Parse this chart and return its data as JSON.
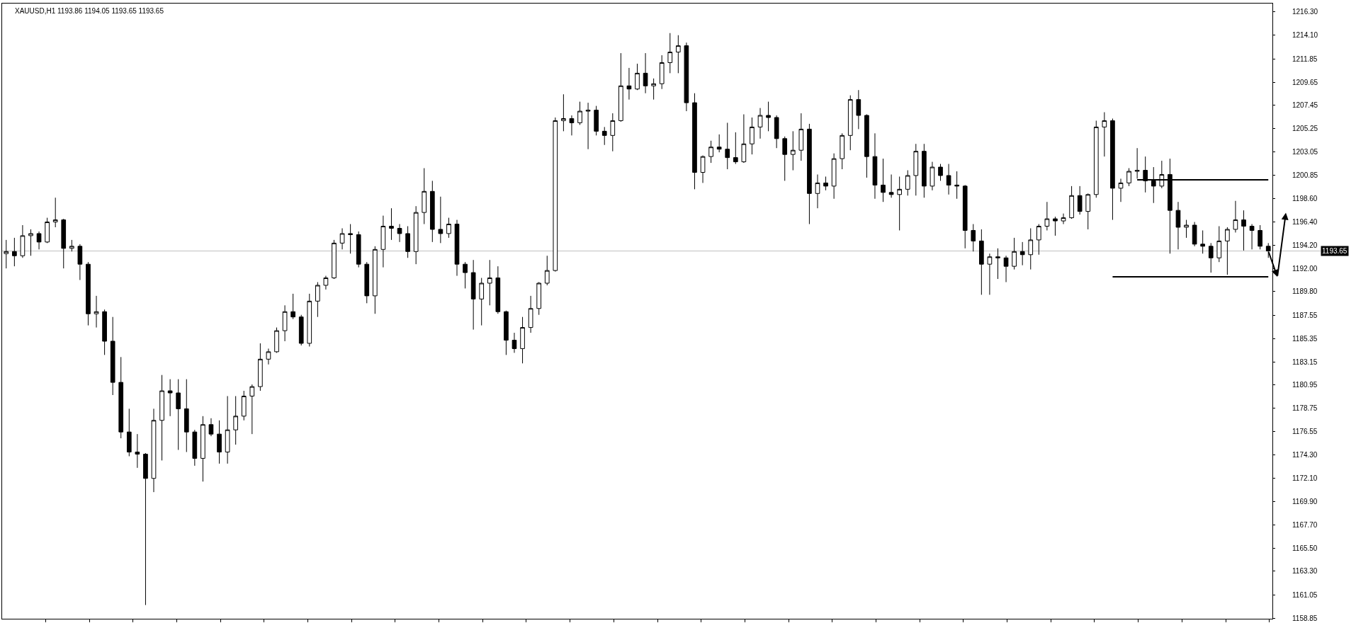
{
  "chart_data": {
    "type": "candlestick",
    "title": "XAUUSD,H1 1193.86 1194.05 1193.65 1193.65",
    "color": "#000000",
    "tick_labels": "y",
    "ylim": [
      1158.8,
      1217.1
    ],
    "yticks": [
      {
        "value": 1216.3,
        "label": "1216.30"
      },
      {
        "value": 1214.1,
        "label": "1214.10"
      },
      1211.85,
      1209.65,
      1207.45,
      1205.25,
      1203.05,
      1200.85,
      {
        "value": 1198.6,
        "label": "1198.60"
      },
      {
        "value": 1196.4,
        "label": "1196.40"
      },
      {
        "value": 1194.2,
        "label": "1194.20"
      },
      {
        "value": 1192.0,
        "label": "1192.00"
      },
      {
        "value": 1189.8,
        "label": "1189.80"
      },
      1187.55,
      1185.35,
      1183.15,
      1180.95,
      1178.75,
      1176.55,
      {
        "value": 1174.3,
        "label": "1174.30"
      },
      {
        "value": 1172.1,
        "label": "1172.10"
      },
      {
        "value": 1169.9,
        "label": "1169.90"
      },
      {
        "value": 1167.7,
        "label": "1167.70"
      },
      {
        "value": 1165.5,
        "label": "1165.50"
      },
      {
        "value": 1163.3,
        "label": "1163.30"
      },
      1161.05,
      1158.85
    ],
    "ref_lines": [
      {
        "axis": "y",
        "value": 1193.65,
        "label": "1193.65",
        "color": "#c0c0c0"
      }
    ],
    "categories": [
      null,
      null,
      null,
      null,
      null,
      null,
      null,
      null,
      null,
      null,
      null,
      null,
      null,
      null,
      null,
      null,
      null,
      null,
      null,
      null,
      null,
      null,
      null,
      null,
      null,
      null,
      null,
      null,
      null,
      null,
      null,
      null,
      null,
      null,
      null,
      null,
      null,
      null,
      null,
      null,
      null,
      null,
      null,
      null,
      null,
      null,
      null,
      null,
      null,
      null,
      null,
      null,
      null,
      null,
      null,
      null,
      null,
      null,
      null,
      null,
      null,
      null,
      null,
      null,
      null,
      null,
      null,
      null,
      null,
      null,
      null,
      null,
      null,
      null,
      null,
      null,
      null,
      null,
      null,
      null,
      null,
      null,
      null,
      null,
      null,
      null,
      null,
      null,
      null,
      null,
      null,
      null,
      null,
      null,
      null,
      null,
      null,
      null,
      null,
      null,
      null,
      null,
      null,
      null,
      null,
      null,
      null,
      null,
      null,
      null,
      null,
      null,
      null,
      null,
      null,
      null,
      null,
      null,
      null,
      null,
      null,
      null,
      null,
      null,
      null,
      null,
      null,
      null,
      null,
      null,
      null,
      null,
      null,
      null,
      null,
      null,
      null,
      null,
      null,
      null,
      null,
      null,
      null,
      null,
      null,
      null,
      null,
      null,
      null,
      null,
      null,
      null,
      null,
      null,
      null
    ],
    "ohlc": [
      [
        1193.4,
        1194.7,
        1192.0,
        1193.6
      ],
      [
        1193.6,
        1194.9,
        1192.2,
        1193.2
      ],
      [
        1193.2,
        1196.1,
        1193.0,
        1195.1
      ],
      [
        1195.1,
        1195.7,
        1193.2,
        1195.3
      ],
      [
        1195.3,
        1195.5,
        1193.8,
        1194.5
      ],
      [
        1194.5,
        1196.8,
        1194.4,
        1196.4
      ],
      [
        1196.4,
        1198.7,
        1195.9,
        1196.6
      ],
      [
        1196.6,
        1196.7,
        1192.0,
        1193.9
      ],
      [
        1193.9,
        1194.7,
        1193.6,
        1194.1
      ],
      [
        1194.1,
        1194.3,
        1190.9,
        1192.4
      ],
      [
        1192.4,
        1192.6,
        1186.6,
        1187.7
      ],
      [
        1187.7,
        1189.4,
        1186.4,
        1187.9
      ],
      [
        1187.9,
        1188.1,
        1183.8,
        1185.1
      ],
      [
        1185.1,
        1187.4,
        1180.0,
        1181.2
      ],
      [
        1181.2,
        1183.6,
        1175.9,
        1176.5
      ],
      [
        1176.5,
        1178.7,
        1174.2,
        1174.6
      ],
      [
        1174.6,
        1176.3,
        1173.1,
        1174.4
      ],
      [
        1174.4,
        1174.5,
        1160.1,
        1172.1
      ],
      [
        1172.1,
        1178.7,
        1170.8,
        1177.6
      ],
      [
        1177.6,
        1181.9,
        1173.8,
        1180.4
      ],
      [
        1180.4,
        1181.5,
        1178.0,
        1180.2
      ],
      [
        1180.2,
        1181.5,
        1174.8,
        1178.7
      ],
      [
        1178.7,
        1181.5,
        1174.6,
        1176.5
      ],
      [
        1176.5,
        1176.7,
        1173.3,
        1174.0
      ],
      [
        1174.0,
        1178.0,
        1171.8,
        1177.2
      ],
      [
        1177.2,
        1177.8,
        1176.1,
        1176.3
      ],
      [
        1176.3,
        1177.6,
        1173.5,
        1174.6
      ],
      [
        1174.6,
        1179.9,
        1173.5,
        1176.7
      ],
      [
        1176.7,
        1179.9,
        1175.3,
        1178.0
      ],
      [
        1178.0,
        1180.4,
        1177.6,
        1179.9
      ],
      [
        1179.9,
        1181.0,
        1176.3,
        1180.8
      ],
      [
        1180.8,
        1184.9,
        1180.4,
        1183.4
      ],
      [
        1183.4,
        1184.4,
        1182.9,
        1184.1
      ],
      [
        1184.1,
        1186.4,
        1184.0,
        1186.1
      ],
      [
        1186.1,
        1188.5,
        1185.1,
        1187.9
      ],
      [
        1187.9,
        1189.6,
        1187.2,
        1187.4
      ],
      [
        1187.4,
        1187.6,
        1184.7,
        1184.9
      ],
      [
        1184.9,
        1189.6,
        1184.6,
        1188.9
      ],
      [
        1188.9,
        1190.7,
        1187.4,
        1190.4
      ],
      [
        1190.4,
        1191.3,
        1190.0,
        1191.1
      ],
      [
        1191.1,
        1194.7,
        1191.0,
        1194.4
      ],
      [
        1194.4,
        1195.8,
        1193.8,
        1195.3
      ],
      [
        1195.3,
        1196.2,
        1193.4,
        1195.2
      ],
      [
        1195.2,
        1195.5,
        1192.1,
        1192.4
      ],
      [
        1192.4,
        1192.6,
        1188.7,
        1189.4
      ],
      [
        1189.4,
        1194.1,
        1187.7,
        1193.8
      ],
      [
        1193.8,
        1197.0,
        1192.1,
        1196.0
      ],
      [
        1196.0,
        1197.7,
        1194.7,
        1195.8
      ],
      [
        1195.8,
        1196.2,
        1194.5,
        1195.3
      ],
      [
        1195.3,
        1196.0,
        1193.0,
        1193.6
      ],
      [
        1193.6,
        1197.9,
        1192.4,
        1197.3
      ],
      [
        1197.3,
        1201.5,
        1196.2,
        1199.3
      ],
      [
        1199.3,
        1200.3,
        1194.5,
        1195.7
      ],
      [
        1195.7,
        1198.8,
        1194.4,
        1195.3
      ],
      [
        1195.3,
        1196.8,
        1194.9,
        1196.2
      ],
      [
        1196.2,
        1196.6,
        1191.3,
        1192.4
      ],
      [
        1192.4,
        1192.6,
        1190.1,
        1191.6
      ],
      [
        1191.6,
        1192.8,
        1186.2,
        1189.1
      ],
      [
        1189.1,
        1191.1,
        1186.6,
        1190.6
      ],
      [
        1190.6,
        1192.8,
        1188.5,
        1191.1
      ],
      [
        1191.1,
        1192.2,
        1187.7,
        1187.9
      ],
      [
        1187.9,
        1188.0,
        1183.8,
        1185.2
      ],
      [
        1185.2,
        1185.9,
        1184.0,
        1184.4
      ],
      [
        1184.4,
        1187.4,
        1183.0,
        1186.4
      ],
      [
        1186.4,
        1189.4,
        1185.9,
        1188.2
      ],
      [
        1188.2,
        1190.7,
        1187.6,
        1190.6
      ],
      [
        1190.6,
        1193.2,
        1190.4,
        1191.8
      ],
      [
        1191.8,
        1206.3,
        1191.7,
        1206.0
      ],
      [
        1206.0,
        1208.5,
        1205.0,
        1206.2
      ],
      [
        1206.2,
        1206.5,
        1204.6,
        1205.8
      ],
      [
        1205.8,
        1207.8,
        1205.6,
        1206.9
      ],
      [
        1206.9,
        1207.7,
        1203.3,
        1207.0
      ],
      [
        1207.0,
        1207.4,
        1204.6,
        1205.0
      ],
      [
        1205.0,
        1205.4,
        1203.7,
        1204.6
      ],
      [
        1204.6,
        1206.7,
        1203.1,
        1206.0
      ],
      [
        1206.0,
        1212.4,
        1205.9,
        1209.3
      ],
      [
        1209.3,
        1211.0,
        1208.0,
        1209.0
      ],
      [
        1209.0,
        1211.4,
        1208.9,
        1210.5
      ],
      [
        1210.5,
        1212.4,
        1208.6,
        1209.3
      ],
      [
        1209.3,
        1210.0,
        1208.0,
        1209.5
      ],
      [
        1209.5,
        1212.2,
        1209.0,
        1211.5
      ],
      [
        1211.5,
        1214.3,
        1210.5,
        1212.5
      ],
      [
        1212.5,
        1214.1,
        1210.5,
        1213.1
      ],
      [
        1213.1,
        1213.4,
        1206.9,
        1207.7
      ],
      [
        1207.7,
        1208.6,
        1199.5,
        1201.1
      ],
      [
        1201.1,
        1202.7,
        1200.1,
        1202.6
      ],
      [
        1202.6,
        1204.1,
        1202.0,
        1203.5
      ],
      [
        1203.5,
        1204.7,
        1203.0,
        1203.3
      ],
      [
        1203.3,
        1205.8,
        1201.4,
        1202.5
      ],
      [
        1202.5,
        1204.9,
        1201.9,
        1202.1
      ],
      [
        1202.1,
        1206.6,
        1202.0,
        1203.8
      ],
      [
        1203.8,
        1206.3,
        1202.8,
        1205.4
      ],
      [
        1205.4,
        1207.2,
        1204.3,
        1206.5
      ],
      [
        1206.5,
        1207.8,
        1205.0,
        1206.3
      ],
      [
        1206.3,
        1206.5,
        1203.4,
        1204.3
      ],
      [
        1204.3,
        1204.5,
        1200.3,
        1202.8
      ],
      [
        1202.8,
        1205.0,
        1201.3,
        1203.2
      ],
      [
        1203.2,
        1206.7,
        1202.2,
        1205.2
      ],
      [
        1205.2,
        1205.7,
        1196.2,
        1199.1
      ],
      [
        1199.1,
        1200.9,
        1197.7,
        1200.1
      ],
      [
        1200.1,
        1200.7,
        1199.4,
        1199.8
      ],
      [
        1199.8,
        1202.9,
        1198.6,
        1202.4
      ],
      [
        1202.4,
        1204.8,
        1201.4,
        1204.6
      ],
      [
        1204.6,
        1208.4,
        1203.2,
        1208.0
      ],
      [
        1208.0,
        1208.9,
        1205.2,
        1206.5
      ],
      [
        1206.5,
        1206.6,
        1200.6,
        1202.6
      ],
      [
        1202.6,
        1204.8,
        1198.6,
        1199.9
      ],
      [
        1199.9,
        1202.4,
        1198.3,
        1199.2
      ],
      [
        1199.2,
        1200.9,
        1198.7,
        1199.0
      ],
      [
        1199.0,
        1200.7,
        1195.6,
        1199.5
      ],
      [
        1199.5,
        1201.3,
        1198.9,
        1200.8
      ],
      [
        1200.8,
        1203.8,
        1198.9,
        1203.1
      ],
      [
        1203.1,
        1203.8,
        1198.7,
        1199.8
      ],
      [
        1199.8,
        1202.1,
        1199.4,
        1201.6
      ],
      [
        1201.6,
        1201.9,
        1200.3,
        1200.8
      ],
      [
        1200.8,
        1201.9,
        1199.0,
        1199.9
      ],
      [
        1199.9,
        1201.2,
        1198.6,
        1199.8
      ],
      [
        1199.8,
        1199.9,
        1193.9,
        1195.6
      ],
      [
        1195.6,
        1196.2,
        1193.6,
        1194.6
      ],
      [
        1194.6,
        1195.7,
        1189.5,
        1192.4
      ],
      [
        1192.4,
        1193.4,
        1189.5,
        1193.1
      ],
      [
        1193.1,
        1193.9,
        1191.0,
        1193.0
      ],
      [
        1193.0,
        1193.2,
        1190.7,
        1192.2
      ],
      [
        1192.2,
        1194.9,
        1191.9,
        1193.6
      ],
      [
        1193.6,
        1194.5,
        1192.3,
        1193.3
      ],
      [
        1193.3,
        1195.8,
        1191.9,
        1194.7
      ],
      [
        1194.7,
        1196.2,
        1193.3,
        1196.0
      ],
      [
        1196.0,
        1198.3,
        1195.6,
        1196.7
      ],
      [
        1196.7,
        1196.9,
        1195.1,
        1196.5
      ],
      [
        1196.5,
        1197.2,
        1196.2,
        1196.8
      ],
      [
        1196.8,
        1199.8,
        1196.7,
        1198.9
      ],
      [
        1198.9,
        1199.8,
        1197.1,
        1197.4
      ],
      [
        1197.4,
        1199.1,
        1195.7,
        1199.0
      ],
      [
        1199.0,
        1206.0,
        1198.7,
        1205.4
      ],
      [
        1205.4,
        1206.8,
        1202.6,
        1206.0
      ],
      [
        1206.0,
        1206.2,
        1196.6,
        1199.6
      ],
      [
        1199.6,
        1200.5,
        1198.3,
        1200.1
      ],
      [
        1200.1,
        1201.5,
        1199.8,
        1201.2
      ],
      [
        1201.2,
        1203.4,
        1200.5,
        1201.3
      ],
      [
        1201.3,
        1202.6,
        1199.2,
        1200.3
      ],
      [
        1200.3,
        1201.6,
        1198.2,
        1199.8
      ],
      [
        1199.8,
        1202.2,
        1199.6,
        1200.9
      ],
      [
        1200.9,
        1202.4,
        1193.4,
        1197.5
      ],
      [
        1197.5,
        1198.3,
        1193.8,
        1195.9
      ],
      [
        1195.9,
        1196.6,
        1194.9,
        1196.1
      ],
      [
        1196.1,
        1196.4,
        1194.1,
        1194.3
      ],
      [
        1194.3,
        1195.6,
        1193.4,
        1194.1
      ],
      [
        1194.1,
        1194.4,
        1191.6,
        1193.0
      ],
      [
        1193.0,
        1196.0,
        1192.6,
        1194.6
      ],
      [
        1194.6,
        1195.9,
        1191.4,
        1195.7
      ],
      [
        1195.7,
        1198.4,
        1195.4,
        1196.6
      ],
      [
        1196.6,
        1197.5,
        1193.7,
        1196.0
      ],
      [
        1196.0,
        1196.2,
        1193.8,
        1195.6
      ],
      [
        1195.6,
        1196.1,
        1193.8,
        1194.1
      ],
      [
        1194.1,
        1194.4,
        1193.0,
        1193.65
      ]
    ],
    "series": [
      {
        "type": "line",
        "color": "#000000",
        "values": [
          null,
          null,
          null,
          null,
          null,
          null,
          null,
          null,
          null,
          null,
          null,
          null,
          null,
          null,
          null,
          null,
          null,
          null,
          null,
          null,
          null,
          null,
          null,
          null,
          null,
          null,
          null,
          null,
          null,
          null,
          null,
          null,
          null,
          null,
          null,
          null,
          null,
          null,
          null,
          null,
          null,
          null,
          null,
          null,
          null,
          null,
          null,
          null,
          null,
          null,
          null,
          null,
          null,
          null,
          null,
          null,
          null,
          null,
          null,
          null,
          null,
          null,
          null,
          null,
          null,
          null,
          null,
          null,
          null,
          null,
          null,
          null,
          null,
          null,
          null,
          null,
          null,
          null,
          null,
          null,
          null,
          null,
          null,
          null,
          null,
          null,
          null,
          null,
          null,
          null,
          null,
          null,
          null,
          null,
          null,
          null,
          null,
          null,
          null,
          null,
          null,
          null,
          null,
          null,
          null,
          null,
          null,
          null,
          null,
          null,
          null,
          null,
          null,
          null,
          null,
          null,
          null,
          null,
          null,
          null,
          null,
          null,
          null,
          null,
          null,
          null,
          null,
          null,
          null,
          null,
          null,
          null,
          null,
          null,
          null,
          null,
          null,
          null,
          1200.4,
          1200.4,
          1200.4,
          1200.4,
          1200.4,
          1200.4,
          1200.4,
          1200.4,
          1200.4,
          1200.4,
          1200.4,
          1200.4,
          1200.4,
          1200.4,
          1200.4,
          1200.4,
          1200.4
        ]
      },
      {
        "type": "line",
        "color": "#000000",
        "values": [
          null,
          null,
          null,
          null,
          null,
          null,
          null,
          null,
          null,
          null,
          null,
          null,
          null,
          null,
          null,
          null,
          null,
          null,
          null,
          null,
          null,
          null,
          null,
          null,
          null,
          null,
          null,
          null,
          null,
          null,
          null,
          null,
          null,
          null,
          null,
          null,
          null,
          null,
          null,
          null,
          null,
          null,
          null,
          null,
          null,
          null,
          null,
          null,
          null,
          null,
          null,
          null,
          null,
          null,
          null,
          null,
          null,
          null,
          null,
          null,
          null,
          null,
          null,
          null,
          null,
          null,
          null,
          null,
          null,
          null,
          null,
          null,
          null,
          null,
          null,
          null,
          null,
          null,
          null,
          null,
          null,
          null,
          null,
          null,
          null,
          null,
          null,
          null,
          null,
          null,
          null,
          null,
          null,
          null,
          null,
          null,
          null,
          null,
          null,
          null,
          null,
          null,
          null,
          null,
          null,
          null,
          null,
          null,
          null,
          null,
          null,
          null,
          null,
          null,
          null,
          null,
          null,
          null,
          null,
          null,
          null,
          null,
          null,
          null,
          null,
          null,
          null,
          null,
          null,
          null,
          null,
          null,
          null,
          null,
          null,
          1191.2,
          1191.2,
          1191.2,
          1191.2,
          1191.2,
          1191.2,
          1191.2,
          1191.2,
          1191.2,
          1191.2,
          1191.2,
          1191.2,
          1191.2,
          1191.2,
          1191.2,
          1191.2,
          1191.2,
          1191.2,
          1191.2,
          1191.2
        ]
      }
    ]
  }
}
